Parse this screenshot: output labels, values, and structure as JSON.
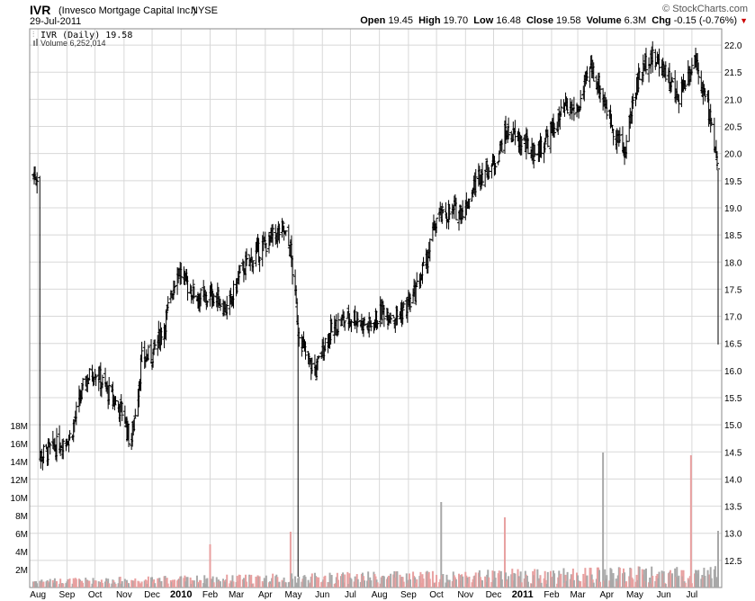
{
  "header": {
    "ticker": "IVR",
    "company": "(Invesco Mortgage Capital Inc.)",
    "exchange": "NYSE",
    "date": "29-Jul-2011",
    "brand": "© StockCharts.com",
    "open_label": "Open",
    "open_value": "19.45",
    "high_label": "High",
    "high_value": "19.70",
    "low_label": "Low",
    "low_value": "16.48",
    "close_label": "Close",
    "close_value": "19.58",
    "volume_label": "Volume",
    "volume_value": "6.3M",
    "chg_label": "Chg",
    "chg_value": "-0.15 (-0.76%)",
    "chg_arrow": "▼"
  },
  "legend": {
    "price": "IVR (Daily) 19.58",
    "volume": "Volume 6,252,014"
  },
  "colors": {
    "price_bar": "#000000",
    "volume_up": "#e8a0a0",
    "volume_down": "#a8a8a8",
    "grid": "#d8d8d8",
    "down_arrow": "#cc0000"
  },
  "chart_data": {
    "type": "ohlc",
    "title": "IVR (Daily) 19.58",
    "price_axis": {
      "ticks": [
        12.5,
        13.0,
        13.5,
        14.0,
        14.5,
        15.0,
        15.5,
        16.0,
        16.5,
        17.0,
        17.5,
        18.0,
        18.5,
        19.0,
        19.5,
        20.0,
        20.5,
        21.0,
        21.5,
        22.0
      ],
      "tick_labels": [
        "12.5",
        "13.0",
        "13.5",
        "14.0",
        "14.5",
        "15.0",
        "15.5",
        "16.0",
        "16.5",
        "17.0",
        "17.5",
        "18.0",
        "18.5",
        "19.0",
        "19.5",
        "20.0",
        "20.5",
        "21.0",
        "21.5",
        "22.0"
      ],
      "range": [
        12.0,
        22.3
      ]
    },
    "volume_axis": {
      "ticks": [
        2,
        4,
        6,
        8,
        10,
        12,
        14,
        16,
        18
      ],
      "tick_labels": [
        "2M",
        "4M",
        "6M",
        "8M",
        "10M",
        "12M",
        "14M",
        "16M",
        "18M"
      ],
      "range_millions": [
        0,
        20
      ]
    },
    "x_axis": {
      "labels": [
        "Aug",
        "Sep",
        "Oct",
        "Nov",
        "Dec",
        "2010",
        "Feb",
        "Mar",
        "Apr",
        "May",
        "Jun",
        "Jul",
        "Aug",
        "Sep",
        "Oct",
        "Nov",
        "Dec",
        "2011",
        "Feb",
        "Mar",
        "Apr",
        "May",
        "Jun",
        "Jul"
      ],
      "bold": [
        "2010",
        "2011"
      ]
    },
    "price_points": [
      [
        "2009-08-01",
        14.4
      ],
      [
        "2009-08-20",
        14.6
      ],
      [
        "2009-09-05",
        14.8
      ],
      [
        "2009-09-20",
        15.8
      ],
      [
        "2009-10-01",
        16.0
      ],
      [
        "2009-10-15",
        15.6
      ],
      [
        "2009-11-01",
        15.2
      ],
      [
        "2009-11-08",
        14.6
      ],
      [
        "2009-11-20",
        16.2
      ],
      [
        "2009-12-01",
        16.3
      ],
      [
        "2009-12-15",
        16.9
      ],
      [
        "2009-12-28",
        17.9
      ],
      [
        "2010-01-10",
        17.5
      ],
      [
        "2010-01-25",
        17.3
      ],
      [
        "2010-02-05",
        17.4
      ],
      [
        "2010-02-20",
        17.1
      ],
      [
        "2010-03-05",
        17.8
      ],
      [
        "2010-03-20",
        18.1
      ],
      [
        "2010-04-05",
        18.4
      ],
      [
        "2010-04-20",
        18.6
      ],
      [
        "2010-04-28",
        18.2
      ],
      [
        "2010-05-06",
        16.8
      ],
      [
        "2010-05-15",
        16.2
      ],
      [
        "2010-05-25",
        16.0
      ],
      [
        "2010-06-05",
        16.6
      ],
      [
        "2010-06-20",
        16.9
      ],
      [
        "2010-07-05",
        17.0
      ],
      [
        "2010-07-20",
        16.8
      ],
      [
        "2010-08-05",
        17.1
      ],
      [
        "2010-08-20",
        17.0
      ],
      [
        "2010-09-05",
        17.3
      ],
      [
        "2010-09-20",
        18.0
      ],
      [
        "2010-10-01",
        18.8
      ],
      [
        "2010-10-15",
        18.9
      ],
      [
        "2010-11-01",
        19.0
      ],
      [
        "2010-11-15",
        19.6
      ],
      [
        "2010-12-01",
        19.8
      ],
      [
        "2010-12-15",
        20.4
      ],
      [
        "2011-01-01",
        20.2
      ],
      [
        "2011-01-15",
        20.0
      ],
      [
        "2011-02-01",
        20.4
      ],
      [
        "2011-02-15",
        20.8
      ],
      [
        "2011-03-01",
        20.8
      ],
      [
        "2011-03-15",
        21.6
      ],
      [
        "2011-03-25",
        21.2
      ],
      [
        "2011-04-05",
        20.6
      ],
      [
        "2011-04-20",
        20.0
      ],
      [
        "2011-05-01",
        21.2
      ],
      [
        "2011-05-15",
        21.8
      ],
      [
        "2011-06-01",
        21.6
      ],
      [
        "2011-06-15",
        21.0
      ],
      [
        "2011-06-25",
        21.4
      ],
      [
        "2011-07-05",
        21.8
      ],
      [
        "2011-07-15",
        21.0
      ],
      [
        "2011-07-22",
        20.6
      ],
      [
        "2011-07-29",
        19.6
      ]
    ],
    "volume_spikes_millions": [
      [
        "2010-02-01",
        4.8
      ],
      [
        "2010-04-28",
        6.2
      ],
      [
        "2010-10-06",
        9.5
      ],
      [
        "2010-12-13",
        7.8
      ],
      [
        "2011-03-28",
        15.0
      ],
      [
        "2011-06-30",
        14.7
      ],
      [
        "2011-07-29",
        6.3
      ]
    ]
  }
}
